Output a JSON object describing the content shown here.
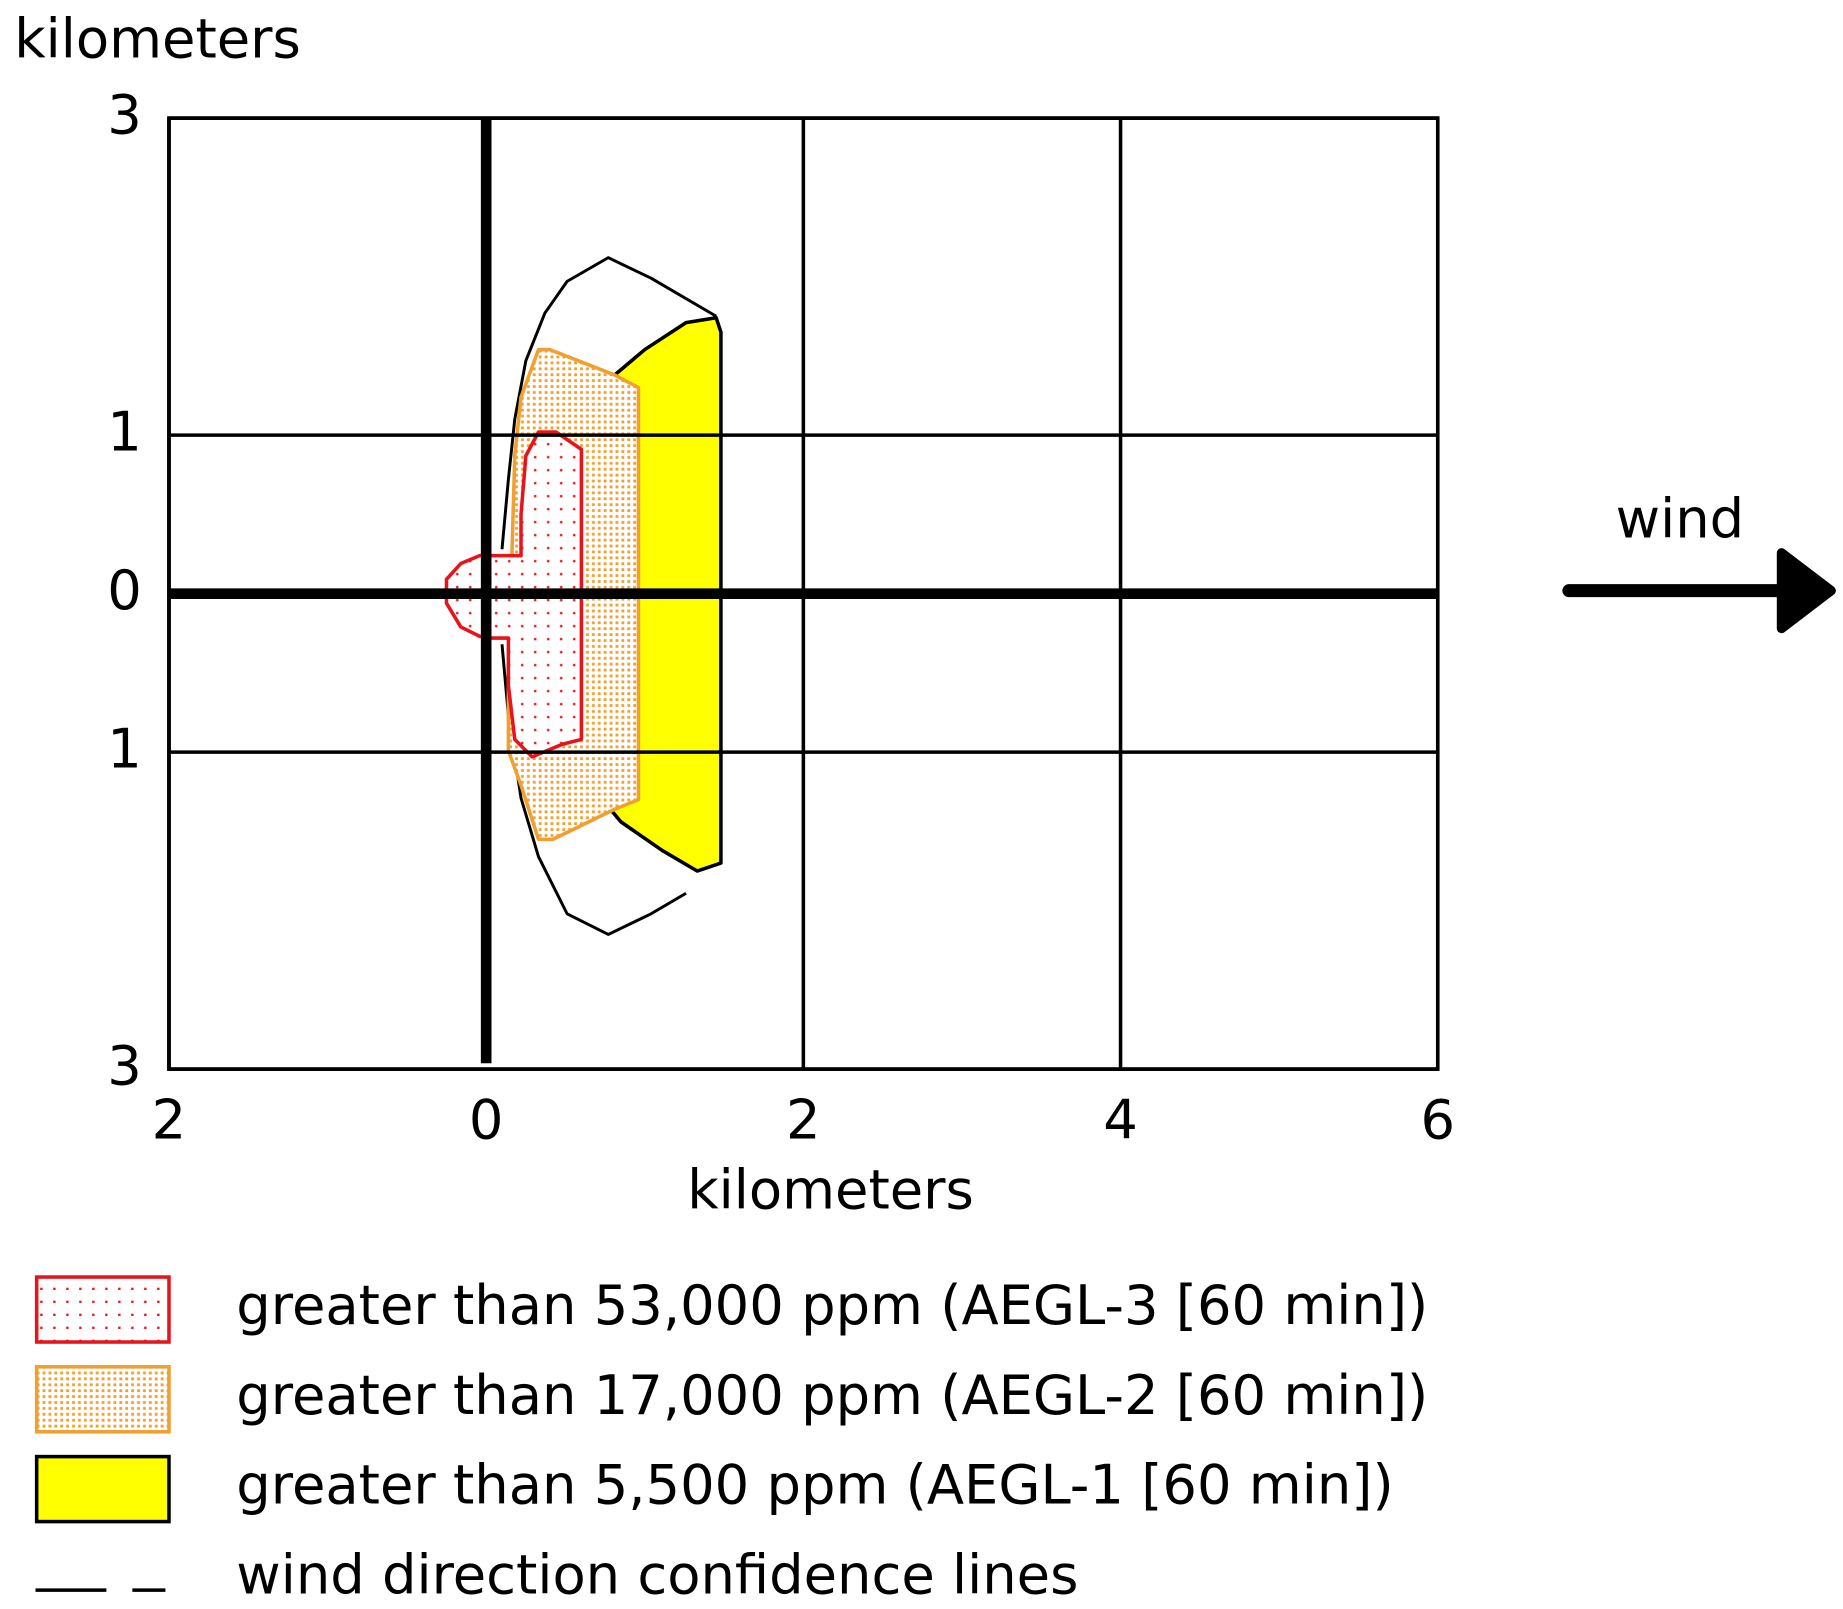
{
  "chart_data": {
    "type": "threat-zone",
    "ylabel": "kilometers",
    "xlabel": "kilometers",
    "annotation": "wind",
    "xlim": [
      -2,
      6
    ],
    "ylim": [
      -3,
      3
    ],
    "xticks": [
      {
        "value": -2,
        "label": "2"
      },
      0,
      2,
      4,
      6
    ],
    "yticks": [
      3,
      1,
      0,
      {
        "value": -1,
        "label": "1"
      },
      {
        "value": -3,
        "label": "3"
      }
    ],
    "grid": true,
    "legend": "bottom",
    "series": [
      {
        "name": "greater than 53,000 ppm (AEGL-3 [60 min])",
        "color": "#e8141c",
        "fill": "sparse-dots",
        "x": [
          0.03,
          0.22,
          0.22,
          0.25,
          0.33,
          0.44,
          0.6,
          0.6,
          0.48,
          0.29,
          0.18,
          0.14,
          0.14,
          0.03,
          -0.04,
          -0.16,
          -0.25,
          -0.25,
          -0.16,
          -0.04
        ],
        "y": [
          0.24,
          0.24,
          0.5,
          0.87,
          1.02,
          1.02,
          0.91,
          -0.92,
          -0.95,
          -1.03,
          -0.92,
          -0.58,
          -0.28,
          -0.28,
          -0.27,
          -0.21,
          -0.06,
          0.09,
          0.19,
          0.24
        ]
      },
      {
        "name": "greater than 17,000 ppm (AEGL-2 [60 min])",
        "color": "#f0a030",
        "fill": "dense-dots",
        "x": [
          0.18,
          0.22,
          0.33,
          0.4,
          0.81,
          0.96,
          0.96,
          0.81,
          0.42,
          0.33,
          0.22,
          0.14,
          0.14
        ],
        "y": [
          0.87,
          1.24,
          1.54,
          1.54,
          1.38,
          1.3,
          -1.3,
          -1.36,
          -1.55,
          -1.55,
          -1.21,
          -0.99,
          -0.54
        ]
      },
      {
        "name": "greater than 5,500 ppm (AEGL-1 [60 min])",
        "color": "#ffff00",
        "fill": "solid",
        "x": [
          0.51,
          0.74,
          1.0,
          1.26,
          1.45,
          1.48,
          1.48,
          1.33,
          1.11,
          0.85,
          0.63,
          0.51
        ],
        "y": [
          0.98,
          1.32,
          1.54,
          1.71,
          1.74,
          1.65,
          -1.7,
          -1.75,
          -1.62,
          -1.44,
          -1.18,
          -0.99
        ]
      },
      {
        "name": "wind direction confidence lines",
        "color": "#000000",
        "fill": "none",
        "x": [
          0.1,
          0.14,
          0.18,
          0.25,
          0.37,
          0.51,
          0.77,
          1.04,
          1.45,
          null,
          0.1,
          0.14,
          0.22,
          0.33,
          0.51,
          0.77,
          1.04,
          1.26
        ],
        "y": [
          0.28,
          0.72,
          1.1,
          1.47,
          1.77,
          1.97,
          2.12,
          1.99,
          1.75,
          null,
          -0.32,
          -0.77,
          -1.29,
          -1.66,
          -2.02,
          -2.15,
          -2.02,
          -1.89
        ]
      }
    ]
  }
}
